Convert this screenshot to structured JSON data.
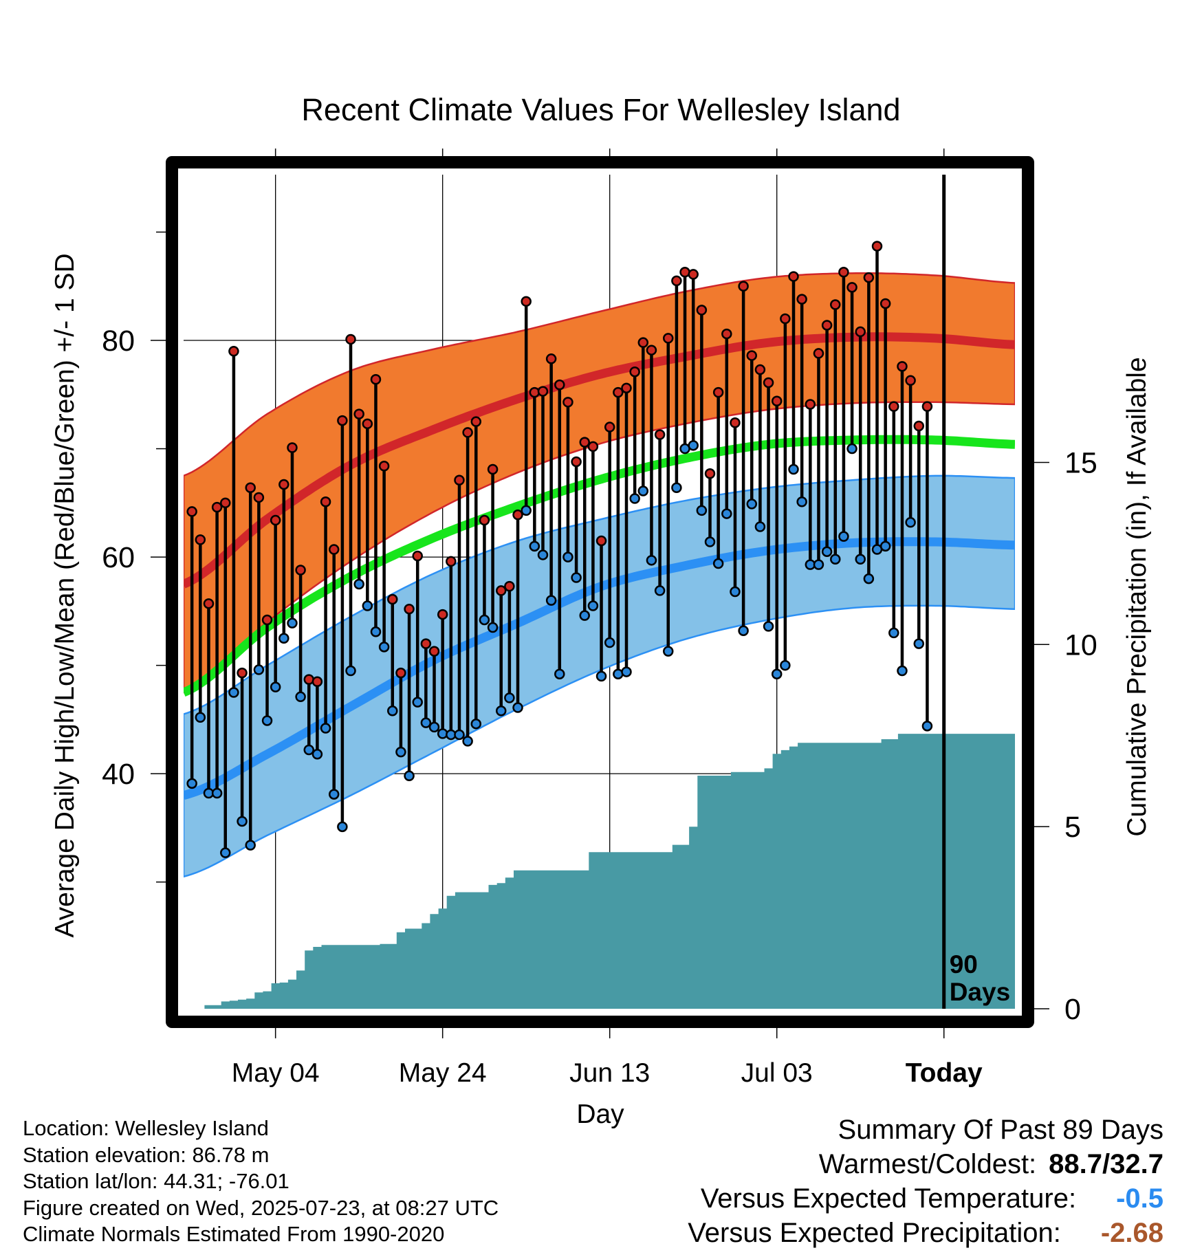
{
  "chart_data": {
    "type": "line",
    "title": "Recent Climate Values For Wellesley Island",
    "xlabel": "Day",
    "ylabel": "Average Daily High/Low/Mean (Red/Blue/Green) +/- 1 SD",
    "y2label": "Cumulative Precipitation (in), If Available",
    "xticks": [
      {
        "day": 11,
        "label": "May 04"
      },
      {
        "day": 31,
        "label": "May 24"
      },
      {
        "day": 51,
        "label": "Jun 13"
      },
      {
        "day": 71,
        "label": "Jul 03"
      },
      {
        "day": 91,
        "label": "Today"
      }
    ],
    "xlim": [
      0,
      99.5
    ],
    "ylim": [
      18.3,
      95.3
    ],
    "yticks": [
      40,
      60,
      80
    ],
    "ylim2": [
      0,
      22.9
    ],
    "yticks2": [
      0,
      5,
      10,
      15
    ],
    "today_day": 91,
    "today_annotation": [
      "90",
      "Days"
    ],
    "grid": true,
    "normals": {
      "x": [
        0,
        10,
        20,
        30,
        40,
        50,
        60,
        70,
        80,
        90,
        99.5
      ],
      "high_mean": [
        57.5,
        63.5,
        68.5,
        71.8,
        74.6,
        76.9,
        78.5,
        79.8,
        80.3,
        80.2,
        79.6
      ],
      "high_upper": [
        67.5,
        73.2,
        77.2,
        79.2,
        80.8,
        82.7,
        84.5,
        85.8,
        86.2,
        86.0,
        85.3
      ],
      "high_lower": [
        47.5,
        54.0,
        59.6,
        64.2,
        67.8,
        70.5,
        72.3,
        73.6,
        74.2,
        74.3,
        74.1
      ],
      "mean": [
        47.5,
        53.5,
        58.2,
        61.8,
        64.7,
        67.2,
        69.1,
        70.4,
        70.8,
        70.8,
        70.4
      ],
      "low_mean": [
        38.0,
        41.8,
        46.2,
        50.5,
        53.9,
        57.3,
        59.2,
        60.6,
        61.3,
        61.4,
        61.1
      ],
      "low_upper": [
        45.5,
        50.0,
        54.5,
        58.5,
        61.5,
        63.5,
        65.2,
        66.4,
        67.1,
        67.5,
        67.3
      ],
      "low_lower": [
        30.5,
        34.3,
        38.0,
        42.0,
        46.0,
        49.6,
        52.4,
        54.2,
        55.3,
        55.5,
        55.2
      ]
    },
    "series": [
      {
        "name": "High",
        "values": [
          64.2,
          61.6,
          55.7,
          64.6,
          65.0,
          79.0,
          49.3,
          66.4,
          65.5,
          54.2,
          63.4,
          66.7,
          70.1,
          58.8,
          48.7,
          48.5,
          65.1,
          60.7,
          72.6,
          80.1,
          73.2,
          72.3,
          76.4,
          68.4,
          56.1,
          49.3,
          55.2,
          60.1,
          52.0,
          51.3,
          54.7,
          59.6,
          67.1,
          71.5,
          72.5,
          63.4,
          68.1,
          56.9,
          57.3,
          63.9,
          83.6,
          75.2,
          75.3,
          78.3,
          75.9,
          74.3,
          68.8,
          70.6,
          70.2,
          61.5,
          72.0,
          75.2,
          75.6,
          77.1,
          79.8,
          79.1,
          71.3,
          80.2,
          85.5,
          86.3,
          86.1,
          82.8,
          67.7,
          75.2,
          80.6,
          72.4,
          85.0,
          78.6,
          77.3,
          76.1,
          74.4,
          82.0,
          85.9,
          83.8,
          74.1,
          78.8,
          81.4,
          83.3,
          86.3,
          84.9,
          80.8,
          85.8,
          88.7,
          83.4,
          73.9,
          77.6,
          76.3,
          72.1,
          73.9
        ]
      },
      {
        "name": "Low",
        "values": [
          39.1,
          45.2,
          38.2,
          38.2,
          32.7,
          47.5,
          35.6,
          33.4,
          49.6,
          44.9,
          48.0,
          52.5,
          53.9,
          47.1,
          42.2,
          41.8,
          44.2,
          38.1,
          35.1,
          49.5,
          57.5,
          55.5,
          53.1,
          51.7,
          45.8,
          42.0,
          39.8,
          46.6,
          44.7,
          44.3,
          43.7,
          43.6,
          43.6,
          43.0,
          44.6,
          54.2,
          53.5,
          45.8,
          47.0,
          46.1,
          64.3,
          61.0,
          60.2,
          56.0,
          49.2,
          60.0,
          58.1,
          54.6,
          55.5,
          49.0,
          52.1,
          49.2,
          49.4,
          65.4,
          66.1,
          59.7,
          56.9,
          51.3,
          66.4,
          70.0,
          70.3,
          64.3,
          61.4,
          59.4,
          64.0,
          56.8,
          53.2,
          64.9,
          62.8,
          53.6,
          49.2,
          50.0,
          68.1,
          65.1,
          59.3,
          59.3,
          60.5,
          59.8,
          61.9,
          70.0,
          59.8,
          58.0,
          60.7,
          61.0,
          53.0,
          49.5,
          63.2,
          52.0,
          44.4
        ]
      },
      {
        "name": "Precip",
        "values": [
          0,
          0.1,
          0.1,
          0.2,
          0.22,
          0.25,
          0.28,
          0.45,
          0.48,
          0.7,
          0.72,
          0.8,
          1.05,
          1.6,
          1.7,
          1.75,
          1.75,
          1.75,
          1.75,
          1.75,
          1.75,
          1.75,
          1.78,
          1.78,
          2.1,
          2.2,
          2.2,
          2.35,
          2.6,
          2.75,
          3.1,
          3.2,
          3.2,
          3.2,
          3.2,
          3.4,
          3.45,
          3.6,
          3.8,
          3.8,
          3.8,
          3.8,
          3.8,
          3.8,
          3.8,
          3.8,
          3.8,
          4.3,
          4.3,
          4.3,
          4.3,
          4.3,
          4.3,
          4.3,
          4.3,
          4.3,
          4.3,
          4.5,
          4.5,
          5.0,
          6.4,
          6.4,
          6.4,
          6.4,
          6.5,
          6.5,
          6.5,
          6.5,
          6.6,
          7.0,
          7.1,
          7.2,
          7.3,
          7.3,
          7.3,
          7.3,
          7.3,
          7.3,
          7.3,
          7.3,
          7.3,
          7.3,
          7.4,
          7.4,
          7.55,
          7.55,
          7.55,
          7.55,
          7.55
        ]
      }
    ],
    "colors": {
      "high_band": "#f17a2e",
      "high_line": "#d1262a",
      "mean_line": "#17e51c",
      "low_band": "#84c1e8",
      "low_line": "#2c90f4",
      "precip": "#489aa4",
      "high_dot": "#cc2a22",
      "low_dot": "#2b86d9"
    }
  },
  "footer": {
    "location": "Location: Wellesley Island",
    "elevation": "Station elevation: 86.78 m",
    "latlon": "Station lat/lon: 44.31; -76.01",
    "created": "Figure created on Wed, 2025-07-23, at 08:27 UTC",
    "normals": "Climate Normals Estimated From 1990-2020"
  },
  "summary": {
    "title": "Summary Of Past 89 Days",
    "warmest_label": "Warmest/Coldest:",
    "warmest_value": "88.7/32.7",
    "temp_label": "Versus Expected Temperature:",
    "temp_value": "-0.5",
    "temp_color": "#2a8bf0",
    "precip_label": "Versus Expected Precipitation:",
    "precip_value": "-2.68",
    "precip_color": "#a9572b"
  }
}
